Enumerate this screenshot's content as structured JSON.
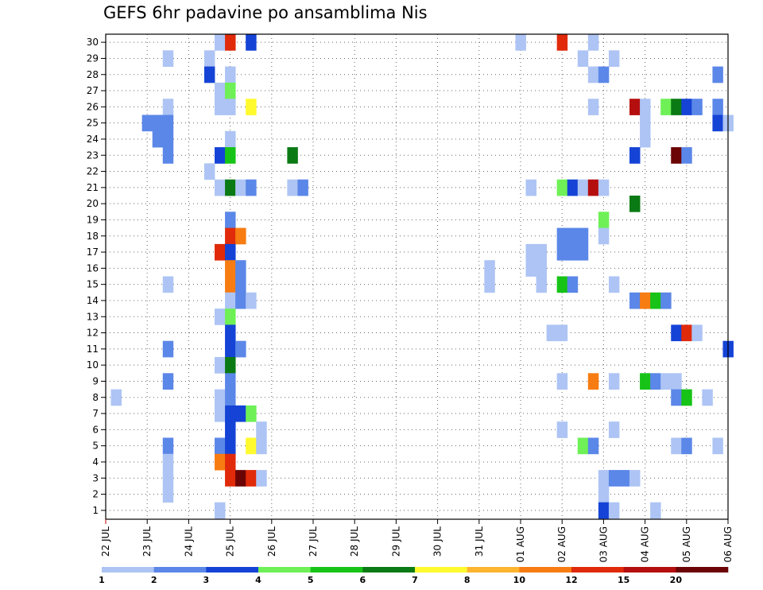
{
  "chart_data": {
    "type": "heatmap",
    "title": "GEFS 6hr padavine po ansamblima Nis",
    "x_tick_labels": [
      "22 JUL",
      "23 JUL",
      "24 JUL",
      "25 JUL",
      "26 JUL",
      "27 JUL",
      "28 JUL",
      "29 JUL",
      "30 JUL",
      "31 JUL",
      "01 AUG",
      "02 AUG",
      "03 AUG",
      "04 AUG",
      "05 AUG",
      "06 AUG"
    ],
    "y_tick_labels": [
      "1",
      "2",
      "3",
      "4",
      "5",
      "6",
      "7",
      "8",
      "9",
      "10",
      "11",
      "12",
      "13",
      "14",
      "15",
      "16",
      "17",
      "18",
      "19",
      "20",
      "21",
      "22",
      "23",
      "24",
      "25",
      "26",
      "27",
      "28",
      "29",
      "30"
    ],
    "steps_per_day": 4,
    "grid": true,
    "colorbar": {
      "labels": [
        "1",
        "2",
        "3",
        "4",
        "5",
        "6",
        "7",
        "8",
        "10",
        "12",
        "15",
        "20"
      ],
      "colors": [
        "#adc4f4",
        "#5b87e8",
        "#1443d6",
        "#6ef056",
        "#16c316",
        "#0a7a14",
        "#fffa2e",
        "#fdb42e",
        "#f77c12",
        "#e02a0a",
        "#b50e0e",
        "#6b0404"
      ]
    },
    "cells": [
      {
        "member": 30,
        "step": 11,
        "class": 1
      },
      {
        "member": 30,
        "step": 12,
        "class": 10
      },
      {
        "member": 30,
        "step": 14,
        "class": 3
      },
      {
        "member": 30,
        "step": 40,
        "class": 1
      },
      {
        "member": 30,
        "step": 44,
        "class": 10
      },
      {
        "member": 30,
        "step": 47,
        "class": 1
      },
      {
        "member": 29,
        "step": 6,
        "class": 1
      },
      {
        "member": 29,
        "step": 10,
        "class": 1
      },
      {
        "member": 29,
        "step": 46,
        "class": 1
      },
      {
        "member": 29,
        "step": 49,
        "class": 1
      },
      {
        "member": 28,
        "step": 10,
        "class": 3
      },
      {
        "member": 28,
        "step": 12,
        "class": 1
      },
      {
        "member": 28,
        "step": 47,
        "class": 1
      },
      {
        "member": 28,
        "step": 48,
        "class": 2
      },
      {
        "member": 28,
        "step": 59,
        "class": 2
      },
      {
        "member": 27,
        "step": 11,
        "class": 1
      },
      {
        "member": 27,
        "step": 12,
        "class": 4
      },
      {
        "member": 26,
        "step": 6,
        "class": 1
      },
      {
        "member": 26,
        "step": 11,
        "class": 1
      },
      {
        "member": 26,
        "step": 12,
        "class": 1
      },
      {
        "member": 26,
        "step": 14,
        "class": 7
      },
      {
        "member": 26,
        "step": 47,
        "class": 1
      },
      {
        "member": 26,
        "step": 51,
        "class": 11
      },
      {
        "member": 26,
        "step": 52,
        "class": 1
      },
      {
        "member": 26,
        "step": 54,
        "class": 4
      },
      {
        "member": 26,
        "step": 55,
        "class": 6
      },
      {
        "member": 26,
        "step": 56,
        "class": 3
      },
      {
        "member": 26,
        "step": 57,
        "class": 2
      },
      {
        "member": 26,
        "step": 59,
        "class": 2
      },
      {
        "member": 25,
        "step": 4,
        "class": 2
      },
      {
        "member": 25,
        "step": 5,
        "class": 2
      },
      {
        "member": 25,
        "step": 6,
        "class": 2
      },
      {
        "member": 25,
        "step": 52,
        "class": 1
      },
      {
        "member": 25,
        "step": 59,
        "class": 3
      },
      {
        "member": 25,
        "step": 60,
        "class": 1
      },
      {
        "member": 24,
        "step": 5,
        "class": 2
      },
      {
        "member": 24,
        "step": 6,
        "class": 2
      },
      {
        "member": 24,
        "step": 12,
        "class": 1
      },
      {
        "member": 24,
        "step": 52,
        "class": 1
      },
      {
        "member": 23,
        "step": 6,
        "class": 2
      },
      {
        "member": 23,
        "step": 11,
        "class": 3
      },
      {
        "member": 23,
        "step": 12,
        "class": 5
      },
      {
        "member": 23,
        "step": 18,
        "class": 6
      },
      {
        "member": 23,
        "step": 51,
        "class": 3
      },
      {
        "member": 23,
        "step": 55,
        "class": 12
      },
      {
        "member": 23,
        "step": 56,
        "class": 2
      },
      {
        "member": 22,
        "step": 10,
        "class": 1
      },
      {
        "member": 21,
        "step": 11,
        "class": 1
      },
      {
        "member": 21,
        "step": 12,
        "class": 6
      },
      {
        "member": 21,
        "step": 13,
        "class": 1
      },
      {
        "member": 21,
        "step": 14,
        "class": 2
      },
      {
        "member": 21,
        "step": 18,
        "class": 1
      },
      {
        "member": 21,
        "step": 19,
        "class": 2
      },
      {
        "member": 21,
        "step": 41,
        "class": 1
      },
      {
        "member": 21,
        "step": 44,
        "class": 4
      },
      {
        "member": 21,
        "step": 45,
        "class": 3
      },
      {
        "member": 21,
        "step": 46,
        "class": 1
      },
      {
        "member": 21,
        "step": 47,
        "class": 11
      },
      {
        "member": 21,
        "step": 48,
        "class": 1
      },
      {
        "member": 20,
        "step": 51,
        "class": 6
      },
      {
        "member": 19,
        "step": 12,
        "class": 2
      },
      {
        "member": 19,
        "step": 48,
        "class": 4
      },
      {
        "member": 18,
        "step": 12,
        "class": 10
      },
      {
        "member": 18,
        "step": 13,
        "class": 9
      },
      {
        "member": 18,
        "step": 44,
        "class": 2
      },
      {
        "member": 18,
        "step": 45,
        "class": 2
      },
      {
        "member": 18,
        "step": 46,
        "class": 2
      },
      {
        "member": 18,
        "step": 48,
        "class": 1
      },
      {
        "member": 17,
        "step": 11,
        "class": 10
      },
      {
        "member": 17,
        "step": 12,
        "class": 3
      },
      {
        "member": 17,
        "step": 41,
        "class": 1
      },
      {
        "member": 17,
        "step": 42,
        "class": 1
      },
      {
        "member": 17,
        "step": 44,
        "class": 2
      },
      {
        "member": 17,
        "step": 45,
        "class": 2
      },
      {
        "member": 17,
        "step": 46,
        "class": 2
      },
      {
        "member": 16,
        "step": 12,
        "class": 9
      },
      {
        "member": 16,
        "step": 13,
        "class": 2
      },
      {
        "member": 16,
        "step": 37,
        "class": 1
      },
      {
        "member": 16,
        "step": 41,
        "class": 1
      },
      {
        "member": 16,
        "step": 42,
        "class": 1
      },
      {
        "member": 15,
        "step": 6,
        "class": 1
      },
      {
        "member": 15,
        "step": 12,
        "class": 9
      },
      {
        "member": 15,
        "step": 13,
        "class": 2
      },
      {
        "member": 15,
        "step": 37,
        "class": 1
      },
      {
        "member": 15,
        "step": 42,
        "class": 1
      },
      {
        "member": 15,
        "step": 44,
        "class": 5
      },
      {
        "member": 15,
        "step": 45,
        "class": 2
      },
      {
        "member": 15,
        "step": 49,
        "class": 1
      },
      {
        "member": 14,
        "step": 12,
        "class": 1
      },
      {
        "member": 14,
        "step": 13,
        "class": 2
      },
      {
        "member": 14,
        "step": 14,
        "class": 1
      },
      {
        "member": 14,
        "step": 51,
        "class": 2
      },
      {
        "member": 14,
        "step": 52,
        "class": 9
      },
      {
        "member": 14,
        "step": 53,
        "class": 5
      },
      {
        "member": 14,
        "step": 54,
        "class": 2
      },
      {
        "member": 13,
        "step": 11,
        "class": 1
      },
      {
        "member": 13,
        "step": 12,
        "class": 4
      },
      {
        "member": 12,
        "step": 12,
        "class": 3
      },
      {
        "member": 12,
        "step": 43,
        "class": 1
      },
      {
        "member": 12,
        "step": 44,
        "class": 1
      },
      {
        "member": 12,
        "step": 55,
        "class": 3
      },
      {
        "member": 12,
        "step": 56,
        "class": 10
      },
      {
        "member": 12,
        "step": 57,
        "class": 1
      },
      {
        "member": 11,
        "step": 6,
        "class": 2
      },
      {
        "member": 11,
        "step": 12,
        "class": 3
      },
      {
        "member": 11,
        "step": 13,
        "class": 2
      },
      {
        "member": 11,
        "step": 60,
        "class": 3
      },
      {
        "member": 10,
        "step": 11,
        "class": 1
      },
      {
        "member": 10,
        "step": 12,
        "class": 6
      },
      {
        "member": 9,
        "step": 6,
        "class": 2
      },
      {
        "member": 9,
        "step": 12,
        "class": 2
      },
      {
        "member": 9,
        "step": 44,
        "class": 1
      },
      {
        "member": 9,
        "step": 47,
        "class": 9
      },
      {
        "member": 9,
        "step": 49,
        "class": 1
      },
      {
        "member": 9,
        "step": 52,
        "class": 5
      },
      {
        "member": 9,
        "step": 53,
        "class": 2
      },
      {
        "member": 9,
        "step": 54,
        "class": 1
      },
      {
        "member": 9,
        "step": 55,
        "class": 1
      },
      {
        "member": 8,
        "step": 1,
        "class": 1
      },
      {
        "member": 8,
        "step": 11,
        "class": 1
      },
      {
        "member": 8,
        "step": 12,
        "class": 2
      },
      {
        "member": 8,
        "step": 55,
        "class": 2
      },
      {
        "member": 8,
        "step": 56,
        "class": 5
      },
      {
        "member": 8,
        "step": 58,
        "class": 1
      },
      {
        "member": 7,
        "step": 11,
        "class": 1
      },
      {
        "member": 7,
        "step": 12,
        "class": 3
      },
      {
        "member": 7,
        "step": 13,
        "class": 3
      },
      {
        "member": 7,
        "step": 14,
        "class": 4
      },
      {
        "member": 6,
        "step": 12,
        "class": 3
      },
      {
        "member": 6,
        "step": 15,
        "class": 1
      },
      {
        "member": 6,
        "step": 44,
        "class": 1
      },
      {
        "member": 6,
        "step": 49,
        "class": 1
      },
      {
        "member": 5,
        "step": 6,
        "class": 2
      },
      {
        "member": 5,
        "step": 11,
        "class": 2
      },
      {
        "member": 5,
        "step": 12,
        "class": 3
      },
      {
        "member": 5,
        "step": 14,
        "class": 7
      },
      {
        "member": 5,
        "step": 15,
        "class": 1
      },
      {
        "member": 5,
        "step": 46,
        "class": 4
      },
      {
        "member": 5,
        "step": 47,
        "class": 2
      },
      {
        "member": 5,
        "step": 55,
        "class": 1
      },
      {
        "member": 5,
        "step": 56,
        "class": 2
      },
      {
        "member": 5,
        "step": 59,
        "class": 1
      },
      {
        "member": 4,
        "step": 6,
        "class": 1
      },
      {
        "member": 4,
        "step": 11,
        "class": 9
      },
      {
        "member": 4,
        "step": 12,
        "class": 10
      },
      {
        "member": 3,
        "step": 6,
        "class": 1
      },
      {
        "member": 3,
        "step": 12,
        "class": 10
      },
      {
        "member": 3,
        "step": 13,
        "class": 12
      },
      {
        "member": 3,
        "step": 14,
        "class": 10
      },
      {
        "member": 3,
        "step": 15,
        "class": 1
      },
      {
        "member": 3,
        "step": 48,
        "class": 1
      },
      {
        "member": 3,
        "step": 49,
        "class": 2
      },
      {
        "member": 3,
        "step": 50,
        "class": 2
      },
      {
        "member": 3,
        "step": 51,
        "class": 1
      },
      {
        "member": 2,
        "step": 6,
        "class": 1
      },
      {
        "member": 2,
        "step": 48,
        "class": 1
      },
      {
        "member": 1,
        "step": 11,
        "class": 1
      },
      {
        "member": 1,
        "step": 48,
        "class": 3
      },
      {
        "member": 1,
        "step": 49,
        "class": 1
      },
      {
        "member": 1,
        "step": 53,
        "class": 1
      }
    ]
  }
}
